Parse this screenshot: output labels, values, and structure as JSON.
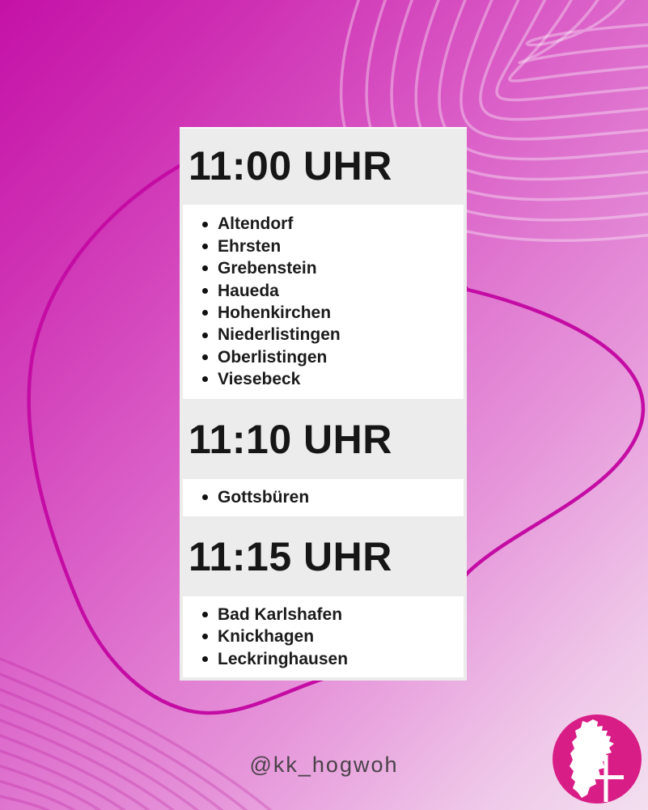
{
  "meta": {
    "handle": "@kk_hogwoh"
  },
  "colors": {
    "bg_gradient_start": "#c411a7",
    "bg_gradient_end": "#f3dff0",
    "blob_outline": "#c40ca4",
    "contour_light": "#eeb6e4",
    "contour_dark": "#c83bab",
    "card_bg": "#ececec",
    "section_bg": "#ffffff",
    "text": "#1b1b1b",
    "handle_text": "#4a4249",
    "logo_circle": "#d91d86"
  },
  "schedule": {
    "sections": [
      {
        "time": "11:00 UHR",
        "places": [
          "Altendorf",
          "Ehrsten",
          "Grebenstein",
          "Haueda",
          "Hohenkirchen",
          "Niederlistingen",
          "Oberlistingen",
          "Viesebeck"
        ]
      },
      {
        "time": "11:10 UHR",
        "places": [
          "Gottsbüren"
        ]
      },
      {
        "time": "11:15 UHR",
        "places": [
          "Bad Karlshafen",
          "Knickhagen",
          "Leckringhausen"
        ]
      }
    ]
  }
}
